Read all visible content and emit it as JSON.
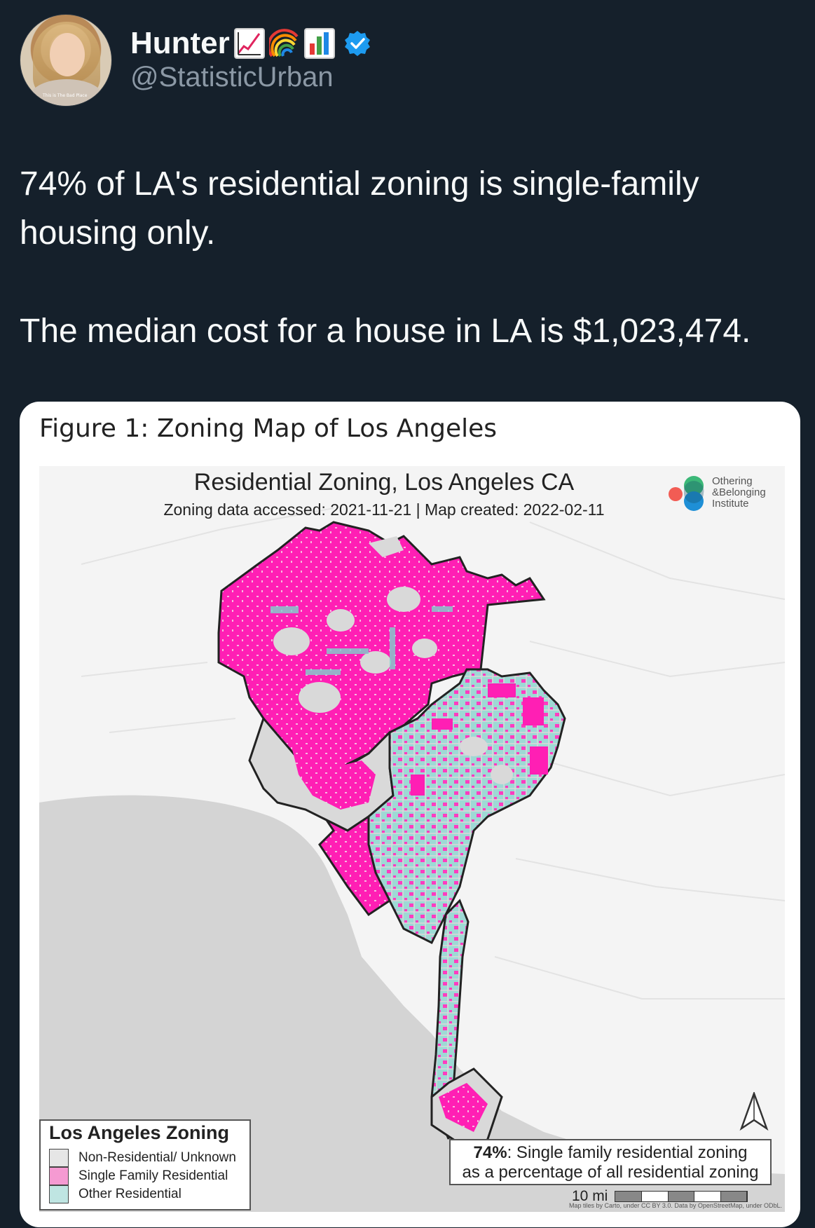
{
  "user": {
    "display_name": "Hunter",
    "emojis": [
      "chart-increasing-emoji",
      "rainbow-emoji",
      "bar-chart-emoji"
    ],
    "handle": "@StatisticUrban",
    "verified": true,
    "avatar_caption": "This is The Bad Place"
  },
  "tweet": {
    "text": "74% of LA's residential zoning is single-family housing only.\n\nThe median cost for a house in LA is $1,023,474."
  },
  "figure": {
    "caption": "Figure 1: Zoning Map of Los Angeles",
    "map_title": "Residential Zoning, Los Angeles CA",
    "map_subtitle": "Zoning data accessed: 2021-11-21 | Map created: 2022-02-11",
    "logo_lines": [
      "Othering",
      "&Belonging",
      "Institute"
    ],
    "legend": {
      "title": "Los Angeles Zoning",
      "items": [
        {
          "label": "Non-Residential/ Unknown",
          "color": "#e6e6e6"
        },
        {
          "label": "Single Family Residential",
          "color": "#f59ad2"
        },
        {
          "label": "Other Residential",
          "color": "#bfe5e2"
        }
      ]
    },
    "stat": {
      "percent": "74%",
      "line1_rest": ": Single family residential zoning",
      "line2": "as a percentage of all residential zoning"
    },
    "scale_label": "10 mi",
    "attribution": "Map tiles by Carto, under CC BY 3.0. Data by OpenStreetMap, under ODbL.",
    "colors": {
      "single_family": "#ff1fb4",
      "other_residential": "#6fcfca",
      "non_residential": "#d9d9d9",
      "ocean": "#d4d4d4",
      "land": "#f4f4f4"
    }
  }
}
